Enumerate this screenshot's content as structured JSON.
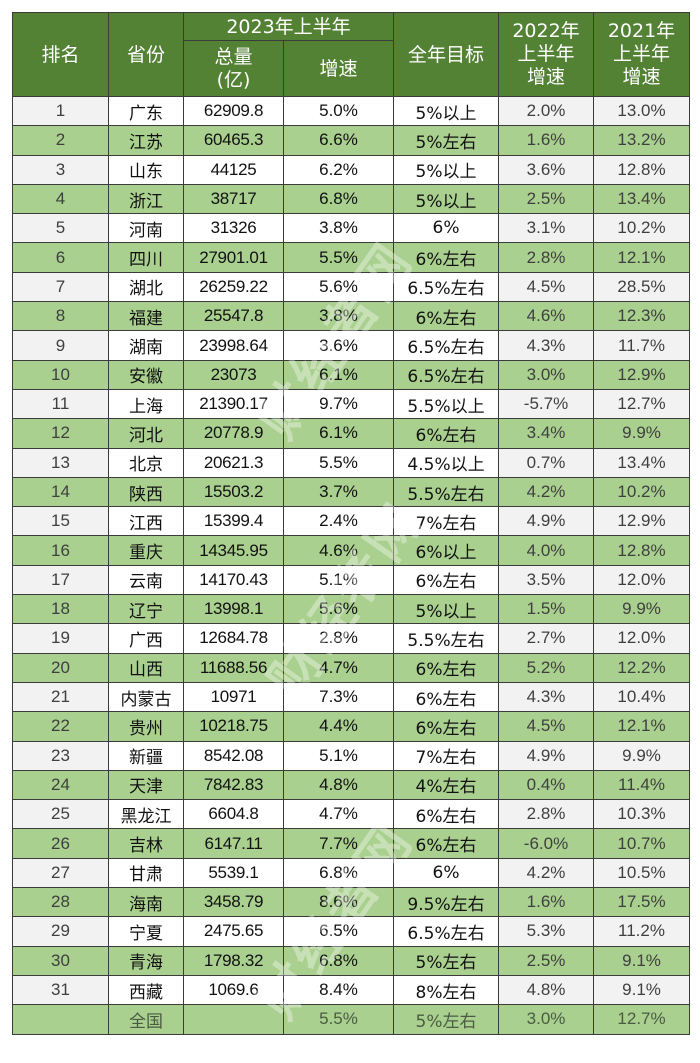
{
  "table": {
    "headers": {
      "rank": "排名",
      "province": "省份",
      "group_2023": "2023年上半年",
      "total": "总量\n(亿)",
      "total_line1": "总量",
      "total_line2": "(亿)",
      "growth": "增速",
      "target": "全年目标",
      "h1_2022_line1": "2022年",
      "h1_2022_line2": "上半年",
      "h1_2022_line3": "增速",
      "h1_2021_line1": "2021年",
      "h1_2021_line2": "上半年",
      "h1_2021_line3": "增速"
    },
    "rows": [
      {
        "rank": "1",
        "province": "广东",
        "total": "62909.8",
        "growth": "5.0%",
        "target": "5%以上",
        "g2022": "2.0%",
        "g2021": "13.0%"
      },
      {
        "rank": "2",
        "province": "江苏",
        "total": "60465.3",
        "growth": "6.6%",
        "target": "5%左右",
        "g2022": "1.6%",
        "g2021": "13.2%"
      },
      {
        "rank": "3",
        "province": "山东",
        "total": "44125",
        "growth": "6.2%",
        "target": "5%以上",
        "g2022": "3.6%",
        "g2021": "12.8%"
      },
      {
        "rank": "4",
        "province": "浙江",
        "total": "38717",
        "growth": "6.8%",
        "target": "5%以上",
        "g2022": "2.5%",
        "g2021": "13.4%"
      },
      {
        "rank": "5",
        "province": "河南",
        "total": "31326",
        "growth": "3.8%",
        "target": "6%",
        "g2022": "3.1%",
        "g2021": "10.2%"
      },
      {
        "rank": "6",
        "province": "四川",
        "total": "27901.01",
        "growth": "5.5%",
        "target": "6%左右",
        "g2022": "2.8%",
        "g2021": "12.1%"
      },
      {
        "rank": "7",
        "province": "湖北",
        "total": "26259.22",
        "growth": "5.6%",
        "target": "6.5%左右",
        "g2022": "4.5%",
        "g2021": "28.5%"
      },
      {
        "rank": "8",
        "province": "福建",
        "total": "25547.8",
        "growth": "3.8%",
        "target": "6%左右",
        "g2022": "4.6%",
        "g2021": "12.3%"
      },
      {
        "rank": "9",
        "province": "湖南",
        "total": "23998.64",
        "growth": "3.6%",
        "target": "6.5%左右",
        "g2022": "4.3%",
        "g2021": "11.7%"
      },
      {
        "rank": "10",
        "province": "安徽",
        "total": "23073",
        "growth": "6.1%",
        "target": "6.5%左右",
        "g2022": "3.0%",
        "g2021": "12.9%"
      },
      {
        "rank": "11",
        "province": "上海",
        "total": "21390.17",
        "growth": "9.7%",
        "target": "5.5%以上",
        "g2022": "-5.7%",
        "g2021": "12.7%"
      },
      {
        "rank": "12",
        "province": "河北",
        "total": "20778.9",
        "growth": "6.1%",
        "target": "6%左右",
        "g2022": "3.4%",
        "g2021": "9.9%"
      },
      {
        "rank": "13",
        "province": "北京",
        "total": "20621.3",
        "growth": "5.5%",
        "target": "4.5%以上",
        "g2022": "0.7%",
        "g2021": "13.4%"
      },
      {
        "rank": "14",
        "province": "陕西",
        "total": "15503.2",
        "growth": "3.7%",
        "target": "5.5%左右",
        "g2022": "4.2%",
        "g2021": "10.2%"
      },
      {
        "rank": "15",
        "province": "江西",
        "total": "15399.4",
        "growth": "2.4%",
        "target": "7%左右",
        "g2022": "4.9%",
        "g2021": "12.9%"
      },
      {
        "rank": "16",
        "province": "重庆",
        "total": "14345.95",
        "growth": "4.6%",
        "target": "6%以上",
        "g2022": "4.0%",
        "g2021": "12.8%"
      },
      {
        "rank": "17",
        "province": "云南",
        "total": "14170.43",
        "growth": "5.1%",
        "target": "6%左右",
        "g2022": "3.5%",
        "g2021": "12.0%"
      },
      {
        "rank": "18",
        "province": "辽宁",
        "total": "13998.1",
        "growth": "5.6%",
        "target": "5%以上",
        "g2022": "1.5%",
        "g2021": "9.9%"
      },
      {
        "rank": "19",
        "province": "广西",
        "total": "12684.78",
        "growth": "2.8%",
        "target": "5.5%左右",
        "g2022": "2.7%",
        "g2021": "12.0%"
      },
      {
        "rank": "20",
        "province": "山西",
        "total": "11688.56",
        "growth": "4.7%",
        "target": "6%左右",
        "g2022": "5.2%",
        "g2021": "12.2%"
      },
      {
        "rank": "21",
        "province": "内蒙古",
        "total": "10971",
        "growth": "7.3%",
        "target": "6%左右",
        "g2022": "4.3%",
        "g2021": "10.4%"
      },
      {
        "rank": "22",
        "province": "贵州",
        "total": "10218.75",
        "growth": "4.4%",
        "target": "6%左右",
        "g2022": "4.5%",
        "g2021": "12.1%"
      },
      {
        "rank": "23",
        "province": "新疆",
        "total": "8542.08",
        "growth": "5.1%",
        "target": "7%左右",
        "g2022": "4.9%",
        "g2021": "9.9%"
      },
      {
        "rank": "24",
        "province": "天津",
        "total": "7842.83",
        "growth": "4.8%",
        "target": "4%左右",
        "g2022": "0.4%",
        "g2021": "11.4%"
      },
      {
        "rank": "25",
        "province": "黑龙江",
        "total": "6604.8",
        "growth": "4.7%",
        "target": "6%左右",
        "g2022": "2.8%",
        "g2021": "10.3%"
      },
      {
        "rank": "26",
        "province": "吉林",
        "total": "6147.11",
        "growth": "7.7%",
        "target": "6%左右",
        "g2022": "-6.0%",
        "g2021": "10.7%"
      },
      {
        "rank": "27",
        "province": "甘肃",
        "total": "5539.1",
        "growth": "6.8%",
        "target": "6%",
        "g2022": "4.2%",
        "g2021": "10.5%"
      },
      {
        "rank": "28",
        "province": "海南",
        "total": "3458.79",
        "growth": "8.6%",
        "target": "9.5%左右",
        "g2022": "1.6%",
        "g2021": "17.5%"
      },
      {
        "rank": "29",
        "province": "宁夏",
        "total": "2475.65",
        "growth": "6.5%",
        "target": "6.5%左右",
        "g2022": "5.3%",
        "g2021": "11.2%"
      },
      {
        "rank": "30",
        "province": "青海",
        "total": "1798.32",
        "growth": "6.8%",
        "target": "5%左右",
        "g2022": "2.5%",
        "g2021": "9.1%"
      },
      {
        "rank": "31",
        "province": "西藏",
        "total": "1069.6",
        "growth": "8.4%",
        "target": "8%左右",
        "g2022": "4.8%",
        "g2021": "9.1%"
      }
    ],
    "total_row": {
      "rank": "",
      "province": "全国",
      "total": "",
      "growth": "5.5%",
      "target": "5%左右",
      "g2022": "3.0%",
      "g2021": "12.7%"
    }
  },
  "colors": {
    "header_bg": "#548235",
    "header_text": "#ffffff",
    "row_green": "#a9d08e",
    "row_white": "#ffffff",
    "row_gray_cols": "#f2f2f2",
    "border": "#3b3b3b"
  },
  "watermark": {
    "text": "财经者网"
  }
}
